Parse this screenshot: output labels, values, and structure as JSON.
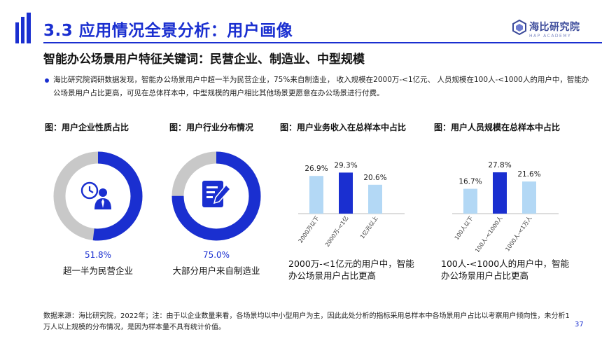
{
  "header": {
    "title": "3.3 应用情况全景分析：用户画像",
    "logo_cn": "海比研究院",
    "logo_en": "HAP ACADEMY"
  },
  "subtitle": "智能办公场景用户特征关键词：民营企业、制造业、中型规模",
  "bullet": "海比研究院调研数据发现，智能办公场景用户中超一半为民营企业，75%来自制造业，  收入规模在2000万-<1亿元、  人员规模在100人-<1000人的用户中，智能办公场景用户占比更高，可见在总体样本中，中型规模的用户相比其他场景更愿意在办公场景进行付费。",
  "colors": {
    "accent": "#1a2fd0",
    "ring_bg": "#c8c8c8",
    "bar_light": "#b3d8f5",
    "bar_dark": "#1a2fd0"
  },
  "chart_data": [
    {
      "type": "pie",
      "title": "图：用户企业性质占比",
      "value_label": "51.8%",
      "caption": "超一半为民营企业",
      "value": 51.8,
      "icon": "business-person-clock-icon"
    },
    {
      "type": "pie",
      "title": "图：用户行业分布情况",
      "value_label": "75.0%",
      "caption": "大部分用户来自制造业",
      "value": 75.0,
      "icon": "document-pen-icon"
    },
    {
      "type": "bar",
      "title": "图：用户业务收入在总样本中占比",
      "categories": [
        "2000万以下",
        "2000万-<1亿",
        "1亿元以上"
      ],
      "values": [
        26.9,
        29.3,
        20.6
      ],
      "labels": [
        "26.9%",
        "29.3%",
        "20.6%"
      ],
      "highlight_index": 1,
      "ylim": [
        0,
        35
      ],
      "caption": "2000万-<1亿元的用户中，智能办公场景用户占比更高"
    },
    {
      "type": "bar",
      "title": "图：用户人员规模在总样本中占比",
      "categories": [
        "100人以下",
        "100人-<1000人",
        "1000人-<1万人"
      ],
      "values": [
        16.7,
        27.8,
        21.6
      ],
      "labels": [
        "16.7%",
        "27.8%",
        "21.6%"
      ],
      "highlight_index": 1,
      "ylim": [
        0,
        33
      ],
      "caption": "100人-<1000人的用户中，智能办公场景用户占比更高"
    }
  ],
  "footnote": "数据来源：海比研究院，2022年；注：由于以企业数量来看，各场景均以中小型用户为主，因此此处分析的指标采用总样本中各场景用户占比以考察用户倾向性，未分析1万人以上规模的分布情况，是因为样本量不具有统计价值。",
  "page_number": "37"
}
